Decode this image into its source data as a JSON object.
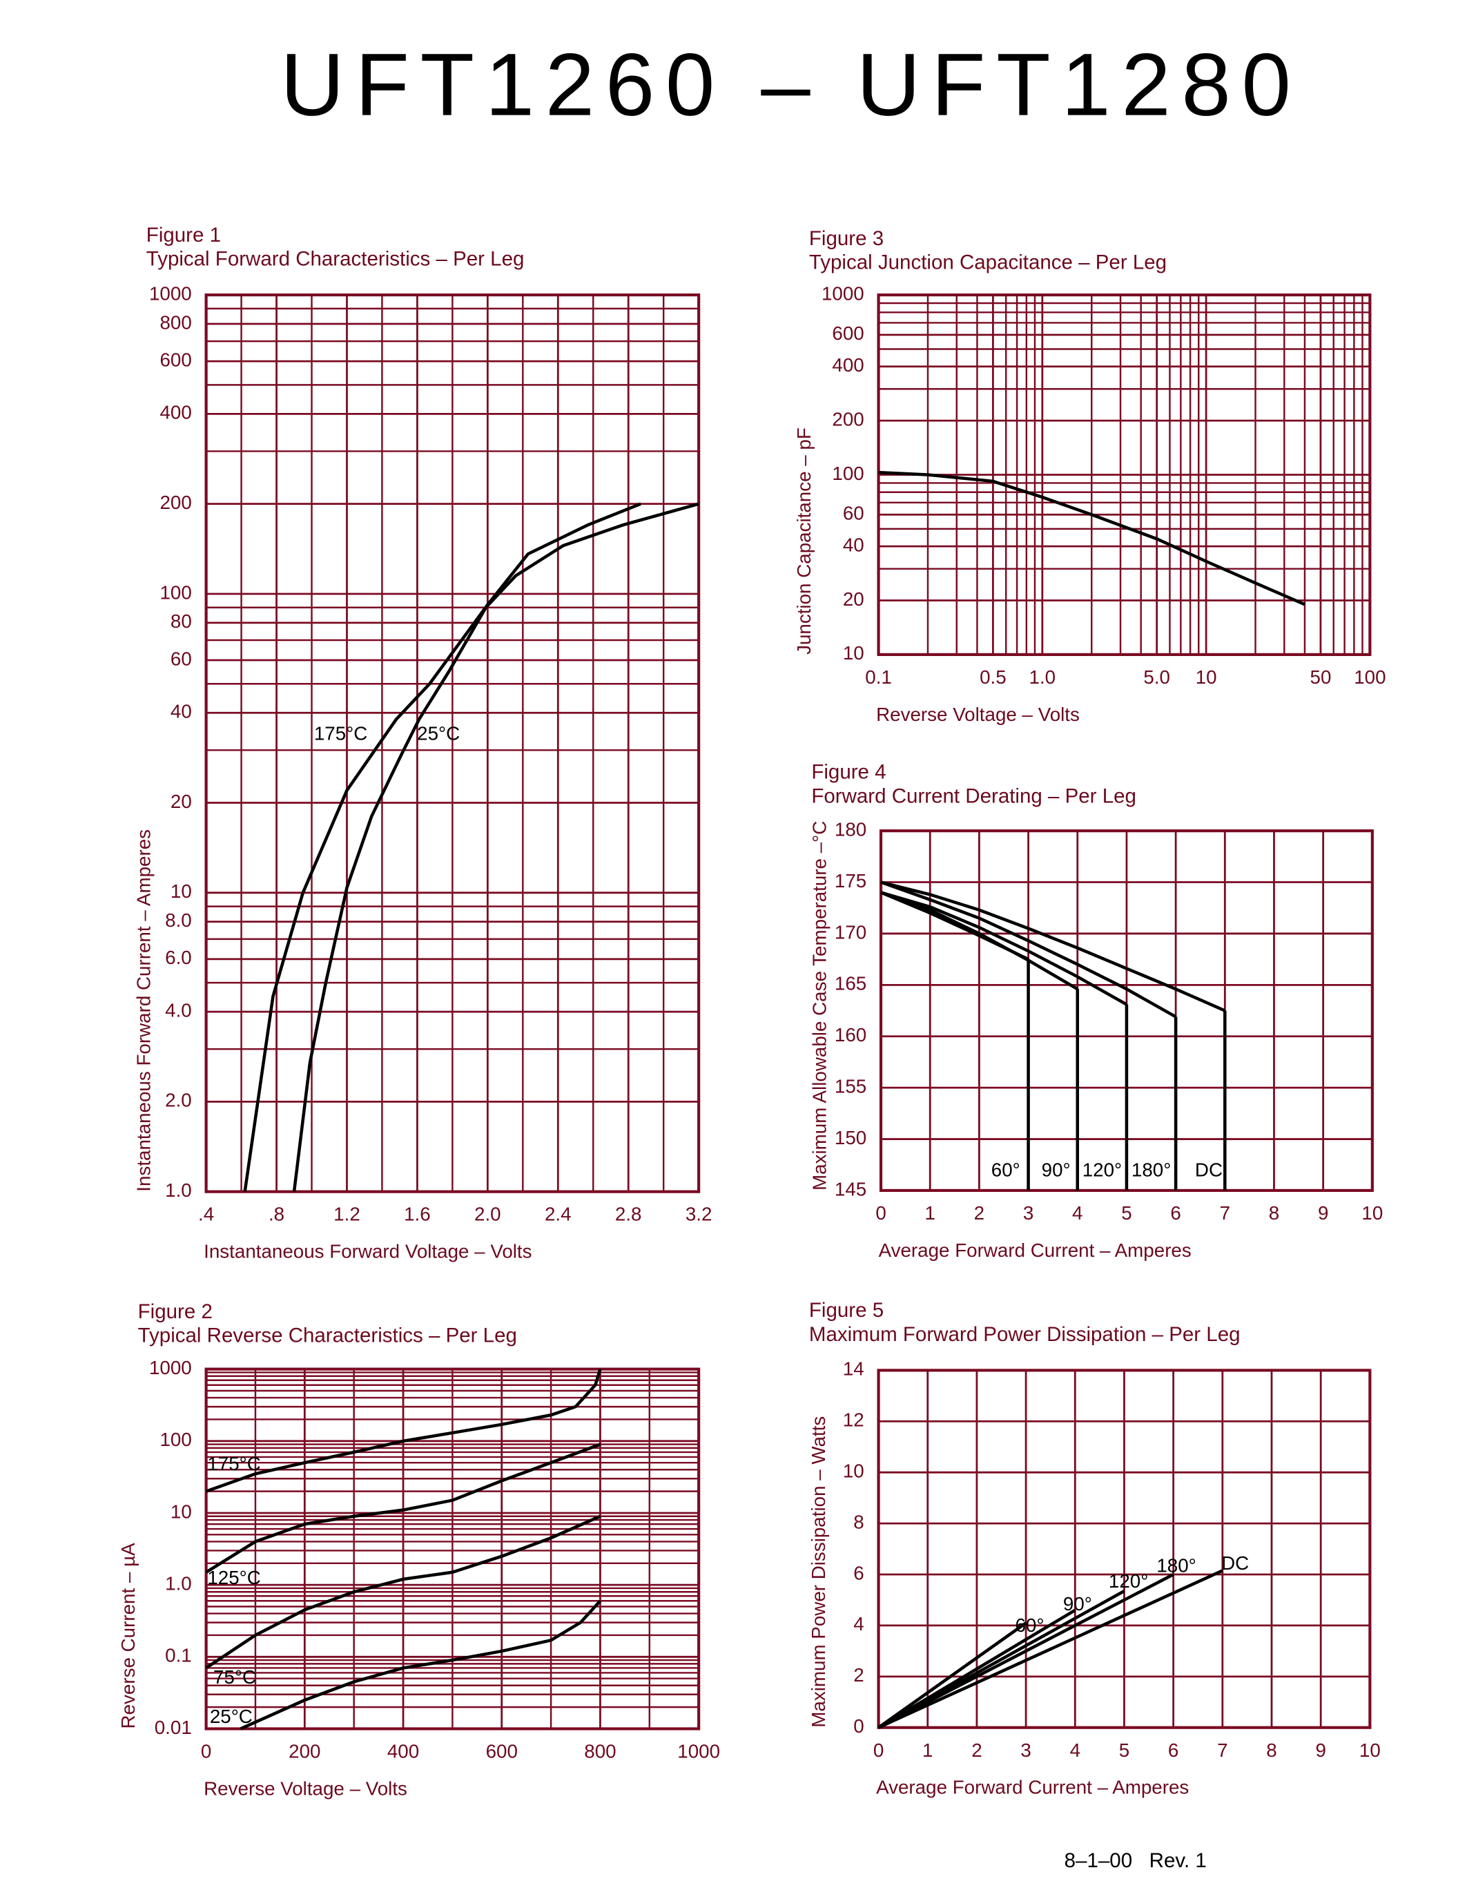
{
  "title": "UFT1260 – UFT1280",
  "footer": "8–1–00   Rev. 1",
  "chart_data": [
    {
      "type": "line",
      "figure": "Figure 1",
      "title": "Typical Forward Characteristics – Per Leg",
      "x_label": "Instantaneous Forward Voltage – Volts",
      "y_label": "Instantaneous Forward Current – Amperes",
      "xlim": [
        0.4,
        3.2
      ],
      "ylim": [
        1,
        1000
      ],
      "ylog": true,
      "grid": true,
      "minor_grid": true,
      "grid_color": "#7a0a22",
      "xticks": [
        {
          "value": 0.4,
          "label": ".4"
        },
        {
          "value": 0.8,
          "label": ".8"
        },
        1.2,
        1.6,
        {
          "value": 2,
          "label": "2.0"
        },
        2.4,
        2.8,
        3.2
      ],
      "yticks": [
        {
          "value": 1,
          "label": "1.0"
        },
        {
          "value": 2,
          "label": "2.0"
        },
        {
          "value": 4,
          "label": "4.0"
        },
        {
          "value": 6,
          "label": "6.0"
        },
        {
          "value": 8,
          "label": "8.0"
        },
        10,
        20,
        40,
        60,
        80,
        100,
        200,
        400,
        600,
        800,
        1000
      ],
      "series": [
        {
          "name": "175°C",
          "color": "#000000",
          "x": [
            0.62,
            0.78,
            0.95,
            1.2,
            1.48,
            1.67,
            2.0,
            2.23,
            2.57,
            2.87
          ],
          "values": [
            1,
            4.5,
            10,
            22,
            38,
            50,
            92,
            136,
            170,
            200
          ]
        },
        {
          "name": "25°C",
          "color": "#000000",
          "x": [
            0.9,
            0.99,
            1.08,
            1.2,
            1.34,
            1.51,
            1.61,
            1.78,
            1.99,
            2.16,
            2.43,
            2.77,
            3.2
          ],
          "values": [
            1,
            2.7,
            5,
            10.4,
            18,
            29,
            38,
            55,
            90,
            115,
            145,
            170,
            200
          ]
        }
      ]
    },
    {
      "type": "line",
      "figure": "Figure 2",
      "title": "Typical Reverse Characteristics – Per Leg",
      "x_label": "Reverse Voltage – Volts",
      "y_label": "Reverse Current – µA",
      "xlim": [
        0,
        1000
      ],
      "ylim": [
        0.01,
        1000
      ],
      "ylog": true,
      "grid": true,
      "minor_grid": true,
      "grid_color": "#7a0a22",
      "xticks": [
        0,
        200,
        400,
        600,
        800,
        1000
      ],
      "yticks": [
        0.01,
        0.1,
        {
          "value": 1,
          "label": "1.0"
        },
        10,
        100,
        1000
      ],
      "series": [
        {
          "name": "175°C",
          "color": "#000000",
          "x": [
            0,
            100,
            200,
            300,
            400,
            500,
            600,
            700,
            750,
            790,
            800
          ],
          "values": [
            20,
            35,
            50,
            70,
            100,
            130,
            170,
            230,
            300,
            600,
            1000
          ]
        },
        {
          "name": "125°C",
          "color": "#000000",
          "x": [
            0,
            100,
            200,
            300,
            400,
            500,
            600,
            700,
            800
          ],
          "values": [
            1.5,
            4,
            7,
            9,
            11,
            15,
            28,
            50,
            90
          ]
        },
        {
          "name": "75°C",
          "color": "#000000",
          "x": [
            0,
            100,
            200,
            300,
            400,
            500,
            600,
            700,
            800
          ],
          "values": [
            0.07,
            0.2,
            0.45,
            0.8,
            1.2,
            1.5,
            2.5,
            4.5,
            9
          ]
        },
        {
          "name": "25°C",
          "color": "#000000",
          "x": [
            70,
            200,
            300,
            400,
            500,
            600,
            700,
            760,
            800
          ],
          "values": [
            0.01,
            0.025,
            0.045,
            0.07,
            0.09,
            0.12,
            0.17,
            0.3,
            0.6
          ]
        }
      ]
    },
    {
      "type": "line",
      "figure": "Figure 3",
      "title": "Typical Junction Capacitance – Per Leg",
      "x_label": "Reverse Voltage – Volts",
      "y_label": "Junction Capacitance – pF",
      "xlim": [
        0.1,
        100
      ],
      "ylim": [
        10,
        1000
      ],
      "xlog": true,
      "ylog": true,
      "grid": true,
      "grid_color": "#7a0a22",
      "xticks": [
        0.1,
        0.5,
        {
          "value": 1,
          "label": "1.0"
        },
        {
          "value": 5,
          "label": "5.0"
        },
        10,
        50,
        100
      ],
      "yticks": [
        10,
        20,
        40,
        60,
        100,
        200,
        400,
        600,
        1000
      ],
      "color": "#000000",
      "x": [
        0.1,
        0.2,
        0.5,
        1,
        2,
        5,
        10,
        20,
        40
      ],
      "values": [
        103,
        100,
        92,
        75,
        60,
        44,
        33,
        25,
        19
      ]
    },
    {
      "type": "line",
      "figure": "Figure 4",
      "title": "Forward Current Derating – Per Leg",
      "x_label": "Average Forward Current – Amperes",
      "y_label": "Maximum Allowable Case Temperature –°C",
      "xlim": [
        0,
        10
      ],
      "ylim": [
        145,
        180
      ],
      "grid": true,
      "drop_lines": true,
      "grid_color": "#7a0a22",
      "xticks": [
        0,
        1,
        2,
        3,
        4,
        5,
        6,
        7,
        8,
        9,
        10
      ],
      "yticks": [
        145,
        150,
        155,
        160,
        165,
        170,
        175,
        180
      ],
      "series": [
        {
          "name": "60°",
          "color": "#000000",
          "x": [
            0,
            1,
            2,
            3
          ],
          "values": [
            174,
            172,
            169.8,
            167.5
          ]
        },
        {
          "name": "90°",
          "color": "#000000",
          "x": [
            0,
            1,
            2,
            3,
            4
          ],
          "values": [
            174,
            172.3,
            170,
            167.4,
            164.6
          ]
        },
        {
          "name": "120°",
          "color": "#000000",
          "x": [
            0,
            1,
            2,
            3,
            4,
            5
          ],
          "values": [
            174,
            172.6,
            170.6,
            168.3,
            165.8,
            163.1
          ]
        },
        {
          "name": "180°",
          "color": "#000000",
          "x": [
            0,
            1,
            2,
            3,
            4,
            5,
            6
          ],
          "values": [
            175,
            173.3,
            171.5,
            169.3,
            167,
            164.6,
            161.9
          ]
        },
        {
          "name": "DC",
          "color": "#000000",
          "x": [
            0,
            1,
            2,
            3,
            4,
            5,
            6,
            7
          ],
          "values": [
            175,
            173.8,
            172.3,
            170.5,
            168.6,
            166.6,
            164.6,
            162.5
          ]
        }
      ]
    },
    {
      "type": "line",
      "figure": "Figure 5",
      "title": "Maximum Forward Power Dissipation – Per Leg",
      "x_label": "Average Forward Current – Amperes",
      "y_label": "Maximum Power Dissipation – Watts",
      "xlim": [
        0,
        10
      ],
      "ylim": [
        0,
        14
      ],
      "grid": true,
      "grid_color": "#7a0a22",
      "xticks": [
        0,
        1,
        2,
        3,
        4,
        5,
        6,
        7,
        8,
        9,
        10
      ],
      "yticks": [
        0,
        2,
        4,
        6,
        8,
        10,
        12,
        14
      ],
      "series": [
        {
          "name": "60°",
          "color": "#000000",
          "x": [
            0,
            3
          ],
          "values": [
            0,
            4.1
          ]
        },
        {
          "name": "90°",
          "color": "#000000",
          "x": [
            0,
            4
          ],
          "values": [
            0,
            4.6
          ]
        },
        {
          "name": "120°",
          "color": "#000000",
          "x": [
            0,
            5
          ],
          "values": [
            0,
            5.35
          ]
        },
        {
          "name": "180°",
          "color": "#000000",
          "x": [
            0,
            6
          ],
          "values": [
            0,
            6
          ]
        },
        {
          "name": "DC",
          "color": "#000000",
          "x": [
            0,
            7
          ],
          "values": [
            0,
            6.15
          ]
        }
      ]
    }
  ]
}
